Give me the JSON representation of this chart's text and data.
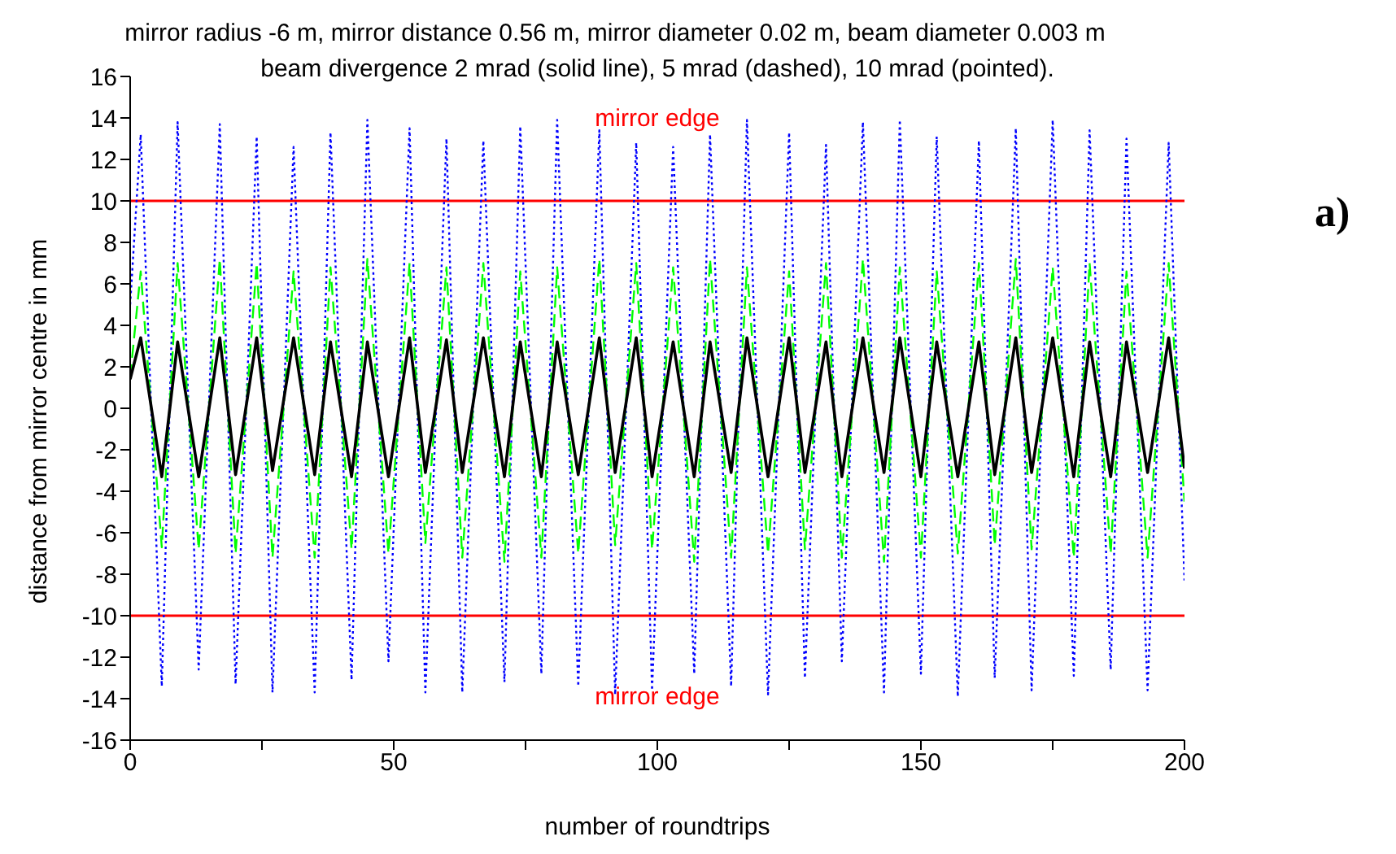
{
  "chart_data": {
    "type": "line",
    "title": "mirror radius -6 m, mirror distance 0.56 m, mirror diameter 0.02 m, beam diameter 0.003 m",
    "subtitle": "beam divergence 2 mrad (solid line), 5 mrad (dashed), 10 mrad (pointed).",
    "xlabel": "number of roundtrips",
    "ylabel": "distance from mirror centre in mm",
    "annotations": [
      "a)"
    ],
    "x": [
      0,
      2,
      6,
      9,
      13,
      17,
      20,
      24,
      27,
      31,
      35,
      38,
      42,
      45,
      49,
      53,
      56,
      60,
      63,
      67,
      71,
      74,
      78,
      81,
      85,
      89,
      92,
      96,
      99,
      103,
      107,
      110,
      114,
      117,
      121,
      125,
      128,
      132,
      135,
      139,
      143,
      146,
      150,
      153,
      157,
      161,
      164,
      168,
      171,
      175,
      179,
      182,
      186,
      189,
      193,
      197,
      200
    ],
    "series": [
      {
        "color": "#0000ff",
        "line_style": "dotted",
        "values": [
          5.0,
          13.2,
          -13.4,
          13.8,
          -12.6,
          13.7,
          -13.3,
          13.1,
          -13.7,
          12.6,
          -13.7,
          13.3,
          -13.1,
          13.9,
          -12.2,
          13.5,
          -13.7,
          13.0,
          -13.7,
          12.9,
          -13.2,
          13.6,
          -12.8,
          13.9,
          -13.4,
          13.4,
          -13.8,
          12.8,
          -13.6,
          12.6,
          -12.8,
          13.2,
          -13.4,
          13.9,
          -13.8,
          13.3,
          -13.0,
          12.7,
          -12.2,
          13.8,
          -13.7,
          13.9,
          -12.8,
          13.1,
          -13.9,
          12.9,
          -13.0,
          13.5,
          -13.6,
          13.9,
          -12.9,
          13.4,
          -12.6,
          13.0,
          -13.6,
          12.8,
          -8.3
        ]
      },
      {
        "color": "#00ff00",
        "line_style": "dashed",
        "values": [
          1.5,
          6.6,
          -6.7,
          7.0,
          -6.8,
          7.2,
          -7.0,
          7.0,
          -7.2,
          6.6,
          -7.2,
          6.8,
          -6.8,
          7.2,
          -7.0,
          7.0,
          -6.5,
          6.8,
          -7.2,
          7.0,
          -7.4,
          6.6,
          -7.2,
          6.8,
          -7.0,
          7.2,
          -6.6,
          7.0,
          -6.8,
          6.8,
          -7.4,
          7.2,
          -7.2,
          6.8,
          -7.0,
          6.6,
          -6.8,
          7.0,
          -7.2,
          7.2,
          -7.4,
          6.8,
          -7.2,
          6.6,
          -7.0,
          7.0,
          -6.6,
          7.2,
          -6.8,
          6.8,
          -7.2,
          7.0,
          -7.0,
          6.6,
          -7.2,
          7.0,
          -4.5
        ]
      },
      {
        "color": "#000000",
        "line_style": "solid",
        "values": [
          1.4,
          3.4,
          -3.3,
          3.2,
          -3.3,
          3.4,
          -3.2,
          3.4,
          -3.0,
          3.4,
          -3.2,
          3.2,
          -3.3,
          3.2,
          -3.3,
          3.4,
          -3.1,
          3.3,
          -3.1,
          3.4,
          -3.3,
          3.2,
          -3.3,
          3.2,
          -3.2,
          3.4,
          -3.1,
          3.4,
          -3.3,
          3.2,
          -3.3,
          3.2,
          -3.1,
          3.4,
          -3.3,
          3.4,
          -3.1,
          3.2,
          -3.3,
          3.4,
          -3.1,
          3.4,
          -3.3,
          3.2,
          -3.3,
          3.2,
          -3.2,
          3.4,
          -3.1,
          3.4,
          -3.3,
          3.2,
          -3.3,
          3.2,
          -3.1,
          3.4,
          -2.9
        ]
      }
    ],
    "ref_lines": [
      {
        "axis": "y",
        "value": 10,
        "label": "mirror edge",
        "color": "#ff0000"
      },
      {
        "axis": "y",
        "value": -10,
        "label": "mirror edge",
        "color": "#ff0000"
      }
    ],
    "xlim": [
      0,
      200
    ],
    "xticks": [
      0,
      {
        "value": 25,
        "label": null
      },
      50,
      {
        "value": 75,
        "label": null
      },
      100,
      {
        "value": 125,
        "label": null
      },
      150,
      {
        "value": 175,
        "label": null
      },
      200
    ],
    "ylim": [
      -16,
      16
    ],
    "yticks": [
      -16,
      -14,
      -12,
      -10,
      -8,
      -6,
      -4,
      -2,
      0,
      2,
      4,
      6,
      8,
      10,
      12,
      14,
      16
    ],
    "grid": false,
    "legend": false,
    "marker": "none"
  }
}
